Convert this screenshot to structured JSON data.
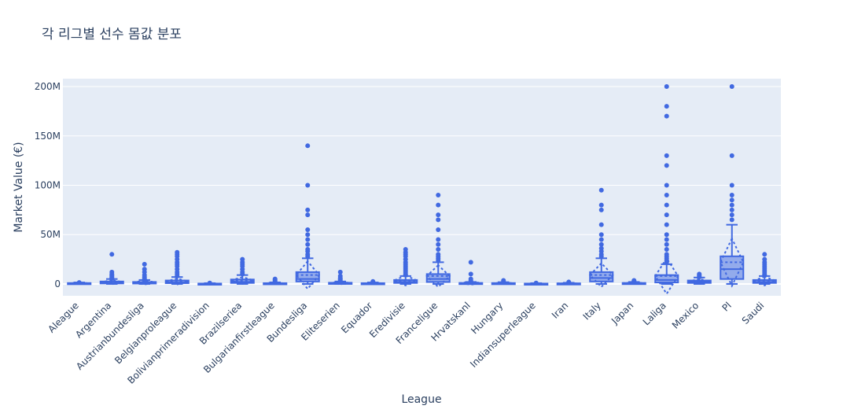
{
  "chart_data": {
    "type": "box",
    "title": "각 리그별 선수 몸값 분포",
    "xlabel": "League",
    "ylabel": "Market Value (€)",
    "ylim": [
      -12000000,
      208000000
    ],
    "yticks": [
      0,
      50000000,
      100000000,
      150000000,
      200000000
    ],
    "ytick_labels": [
      "0",
      "50M",
      "100M",
      "150M",
      "200M"
    ],
    "grid": true,
    "colors": {
      "plot_bg": "#e5ecf6",
      "box": "#4169e1",
      "grid": "#ffffff",
      "text": "#2a3f5f"
    },
    "categories": [
      "Aleague",
      "Argentina",
      "Austrianbundesliga",
      "Belgianproleague",
      "Bolivianprimeradivision",
      "Brazilseriea",
      "Bulgarianfirstleague",
      "Bundesliga",
      "Eliteserien",
      "Equador",
      "Eredivisie",
      "Franceligue",
      "Hrvatskanl",
      "Hungary",
      "Indiansuperleague",
      "Iran",
      "Italy",
      "Japan",
      "Laliga",
      "Mexico",
      "Pl",
      "Saudi"
    ],
    "boxes": [
      {
        "league": "Aleague",
        "q1": 300000,
        "median": 500000,
        "q3": 900000,
        "lower": 0,
        "upper": 1500000,
        "mean": 700000,
        "sd": 500000,
        "outliers": [
          1500000
        ]
      },
      {
        "league": "Argentina",
        "q1": 500000,
        "median": 1000000,
        "q3": 2500000,
        "lower": 0,
        "upper": 5000000,
        "mean": 1800000,
        "sd": 2000000,
        "outliers": [
          5500000,
          6000000,
          7000000,
          8000000,
          9000000,
          10000000,
          12000000,
          30000000
        ]
      },
      {
        "league": "Austrianbundesliga",
        "q1": 400000,
        "median": 800000,
        "q3": 2000000,
        "lower": 0,
        "upper": 4000000,
        "mean": 1500000,
        "sd": 2000000,
        "outliers": [
          4500000,
          5500000,
          7000000,
          9000000,
          12000000,
          15000000,
          20000000
        ]
      },
      {
        "league": "Belgianproleague",
        "q1": 800000,
        "median": 1500000,
        "q3": 3500000,
        "lower": 0,
        "upper": 7000000,
        "mean": 2500000,
        "sd": 3000000,
        "outliers": [
          8000000,
          10000000,
          12000000,
          15000000,
          18000000,
          20000000,
          22000000,
          25000000,
          28000000,
          30000000,
          32000000
        ]
      },
      {
        "league": "Bolivianprimeradivision",
        "q1": 100000,
        "median": 200000,
        "q3": 400000,
        "lower": 0,
        "upper": 800000,
        "mean": 300000,
        "sd": 250000,
        "outliers": [
          1000000
        ]
      },
      {
        "league": "Brazilseriea",
        "q1": 1000000,
        "median": 2000000,
        "q3": 4500000,
        "lower": 0,
        "upper": 9000000,
        "mean": 3500000,
        "sd": 3500000,
        "outliers": [
          10000000,
          12000000,
          15000000,
          18000000,
          20000000,
          22000000,
          25000000
        ]
      },
      {
        "league": "Bulgarianfirstleague",
        "q1": 200000,
        "median": 400000,
        "q3": 800000,
        "lower": 0,
        "upper": 1600000,
        "mean": 600000,
        "sd": 600000,
        "outliers": [
          2000000,
          3000000,
          4000000,
          5000000
        ]
      },
      {
        "league": "Bundesliga",
        "q1": 2500000,
        "median": 5000000,
        "q3": 12000000,
        "lower": 0,
        "upper": 26000000,
        "mean": 9000000,
        "sd": 14000000,
        "outliers": [
          28000000,
          30000000,
          33000000,
          35000000,
          40000000,
          45000000,
          50000000,
          55000000,
          70000000,
          75000000,
          100000000,
          140000000
        ]
      },
      {
        "league": "Eliteserien",
        "q1": 300000,
        "median": 600000,
        "q3": 1200000,
        "lower": 0,
        "upper": 2500000,
        "mean": 900000,
        "sd": 1200000,
        "outliers": [
          3000000,
          4000000,
          5000000,
          6000000,
          8000000,
          12000000
        ]
      },
      {
        "league": "Equador",
        "q1": 200000,
        "median": 400000,
        "q3": 800000,
        "lower": 0,
        "upper": 1500000,
        "mean": 600000,
        "sd": 500000,
        "outliers": [
          2000000,
          2500000
        ]
      },
      {
        "league": "Eredivisie",
        "q1": 1000000,
        "median": 2000000,
        "q3": 4000000,
        "lower": 0,
        "upper": 8000000,
        "mean": 3500000,
        "sd": 5000000,
        "outliers": [
          9000000,
          10000000,
          12000000,
          14000000,
          16000000,
          18000000,
          20000000,
          22000000,
          25000000,
          28000000,
          30000000,
          32000000,
          35000000
        ]
      },
      {
        "league": "Franceligue",
        "q1": 2000000,
        "median": 5000000,
        "q3": 10000000,
        "lower": 0,
        "upper": 22000000,
        "mean": 8000000,
        "sd": 11000000,
        "outliers": [
          24000000,
          26000000,
          28000000,
          30000000,
          35000000,
          40000000,
          45000000,
          55000000,
          65000000,
          70000000,
          80000000,
          90000000
        ]
      },
      {
        "league": "Hrvatskanl",
        "q1": 200000,
        "median": 500000,
        "q3": 1000000,
        "lower": 0,
        "upper": 2000000,
        "mean": 800000,
        "sd": 1500000,
        "outliers": [
          2500000,
          3500000,
          5000000,
          10000000,
          22000000
        ]
      },
      {
        "league": "Hungary",
        "q1": 200000,
        "median": 400000,
        "q3": 900000,
        "lower": 0,
        "upper": 1800000,
        "mean": 700000,
        "sd": 700000,
        "outliers": [
          2500000,
          3500000
        ]
      },
      {
        "league": "Indiansuperleague",
        "q1": 100000,
        "median": 200000,
        "q3": 400000,
        "lower": 0,
        "upper": 800000,
        "mean": 300000,
        "sd": 250000,
        "outliers": [
          1000000
        ]
      },
      {
        "league": "Iran",
        "q1": 150000,
        "median": 300000,
        "q3": 600000,
        "lower": 0,
        "upper": 1200000,
        "mean": 450000,
        "sd": 400000,
        "outliers": [
          1500000,
          2000000
        ]
      },
      {
        "league": "Italy",
        "q1": 2500000,
        "median": 6000000,
        "q3": 12000000,
        "lower": 0,
        "upper": 26000000,
        "mean": 9000000,
        "sd": 12000000,
        "outliers": [
          28000000,
          30000000,
          33000000,
          36000000,
          40000000,
          45000000,
          50000000,
          60000000,
          75000000,
          80000000,
          95000000
        ]
      },
      {
        "league": "Japan",
        "q1": 200000,
        "median": 500000,
        "q3": 1000000,
        "lower": 0,
        "upper": 2000000,
        "mean": 800000,
        "sd": 800000,
        "outliers": [
          2500000,
          3000000,
          3500000
        ]
      },
      {
        "league": "Laliga",
        "q1": 1500000,
        "median": 4000000,
        "q3": 9000000,
        "lower": 0,
        "upper": 20000000,
        "mean": 8000000,
        "sd": 18000000,
        "outliers": [
          22000000,
          24000000,
          26000000,
          28000000,
          30000000,
          35000000,
          40000000,
          45000000,
          50000000,
          60000000,
          70000000,
          80000000,
          90000000,
          100000000,
          120000000,
          130000000,
          170000000,
          180000000,
          200000000
        ]
      },
      {
        "league": "Mexico",
        "q1": 1000000,
        "median": 2000000,
        "q3": 3500000,
        "lower": 0,
        "upper": 6500000,
        "mean": 2500000,
        "sd": 2500000,
        "outliers": [
          7000000,
          8000000,
          9000000,
          10000000
        ]
      },
      {
        "league": "Pl",
        "q1": 5000000,
        "median": 15000000,
        "q3": 28000000,
        "lower": 0,
        "upper": 60000000,
        "mean": 22000000,
        "sd": 24000000,
        "outliers": [
          65000000,
          70000000,
          75000000,
          80000000,
          85000000,
          90000000,
          100000000,
          130000000,
          200000000
        ]
      },
      {
        "league": "Saudi",
        "q1": 1000000,
        "median": 2000000,
        "q3": 4000000,
        "lower": 0,
        "upper": 8000000,
        "mean": 3000000,
        "sd": 4500000,
        "outliers": [
          9000000,
          10000000,
          12000000,
          14000000,
          16000000,
          18000000,
          20000000,
          22000000,
          25000000,
          30000000
        ]
      }
    ]
  }
}
